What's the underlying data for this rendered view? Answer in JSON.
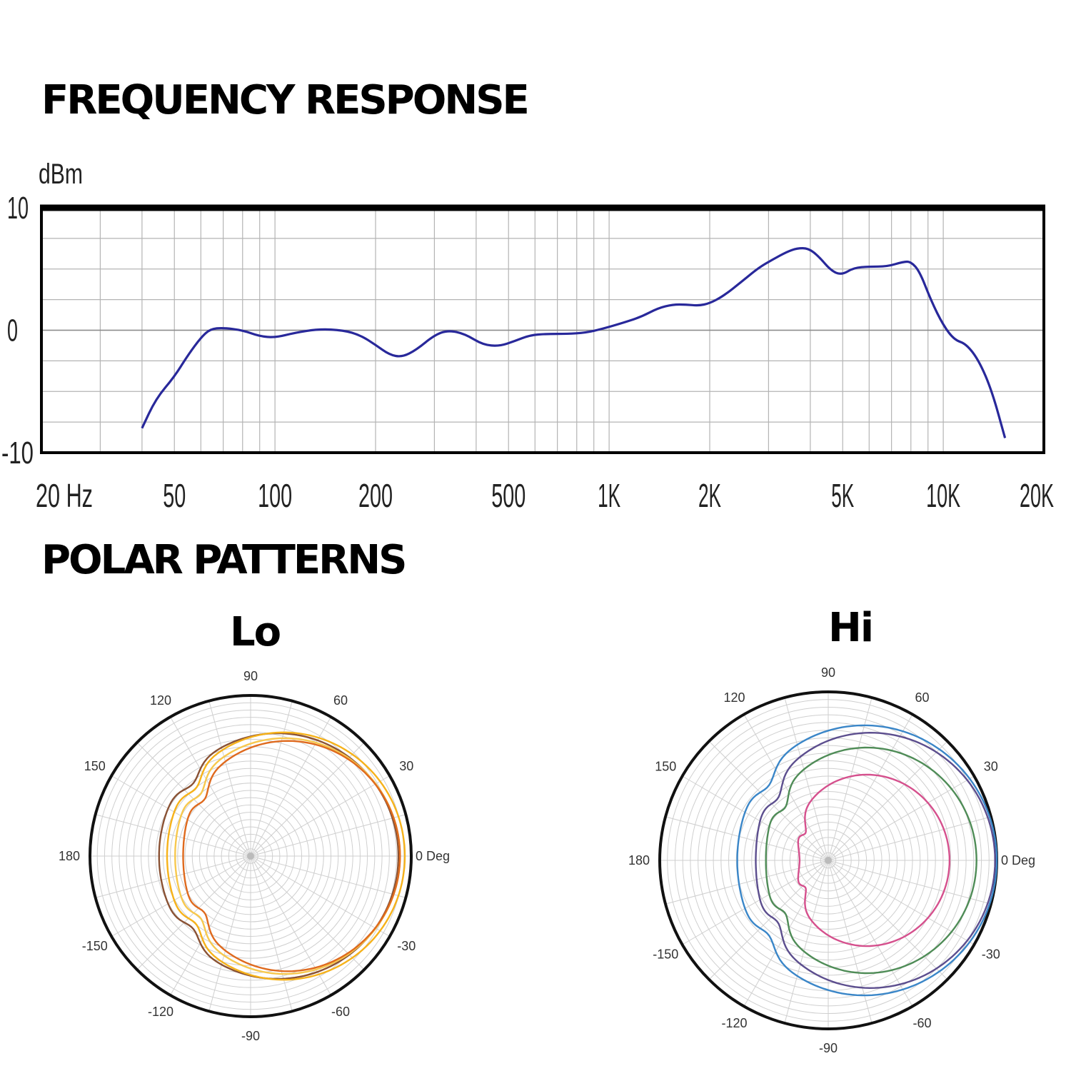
{
  "headings": {
    "frequency_response": "FREQUENCY RESPONSE",
    "polar_patterns": "POLAR PATTERNS"
  },
  "polar_labels": {
    "lo": "Lo",
    "hi": "Hi"
  },
  "chart_data": [
    {
      "type": "line",
      "title": "FREQUENCY RESPONSE",
      "ylabel": "dBm",
      "x_scale": "log",
      "xlim": [
        20,
        20000
      ],
      "ylim": [
        -10,
        10
      ],
      "grid": true,
      "x_tick_labels": [
        {
          "value": 20,
          "label": "20 Hz"
        },
        {
          "value": 50,
          "label": "50"
        },
        {
          "value": 100,
          "label": "100"
        },
        {
          "value": 200,
          "label": "200"
        },
        {
          "value": 500,
          "label": "500"
        },
        {
          "value": 1000,
          "label": "1K"
        },
        {
          "value": 2000,
          "label": "2K"
        },
        {
          "value": 5000,
          "label": "5K"
        },
        {
          "value": 10000,
          "label": "10K"
        },
        {
          "value": 20000,
          "label": "20K"
        }
      ],
      "y_tick_labels": [
        {
          "value": 10,
          "label": "10"
        },
        {
          "value": 0,
          "label": "0"
        },
        {
          "value": -10,
          "label": "-10"
        }
      ],
      "series": [
        {
          "color": "#28289a",
          "points": [
            [
              40,
              -8.0
            ],
            [
              44,
              -5.6
            ],
            [
              50,
              -3.8
            ],
            [
              55,
              -2.0
            ],
            [
              60,
              -0.6
            ],
            [
              64,
              0.1
            ],
            [
              70,
              0.2
            ],
            [
              80,
              0.0
            ],
            [
              90,
              -0.5
            ],
            [
              100,
              -0.6
            ],
            [
              115,
              -0.2
            ],
            [
              135,
              0.1
            ],
            [
              160,
              0.0
            ],
            [
              180,
              -0.4
            ],
            [
              200,
              -1.2
            ],
            [
              220,
              -2.0
            ],
            [
              240,
              -2.2
            ],
            [
              265,
              -1.6
            ],
            [
              300,
              -0.4
            ],
            [
              330,
              0.0
            ],
            [
              370,
              -0.3
            ],
            [
              420,
              -1.2
            ],
            [
              470,
              -1.3
            ],
            [
              520,
              -0.9
            ],
            [
              580,
              -0.4
            ],
            [
              650,
              -0.3
            ],
            [
              750,
              -0.3
            ],
            [
              850,
              -0.2
            ],
            [
              950,
              0.1
            ],
            [
              1100,
              0.6
            ],
            [
              1250,
              1.1
            ],
            [
              1400,
              1.8
            ],
            [
              1550,
              2.1
            ],
            [
              1700,
              2.1
            ],
            [
              1850,
              2.0
            ],
            [
              2000,
              2.2
            ],
            [
              2200,
              2.8
            ],
            [
              2500,
              4.0
            ],
            [
              2800,
              5.1
            ],
            [
              3100,
              5.8
            ],
            [
              3400,
              6.4
            ],
            [
              3650,
              6.7
            ],
            [
              3950,
              6.7
            ],
            [
              4250,
              6.0
            ],
            [
              4600,
              4.9
            ],
            [
              4950,
              4.5
            ],
            [
              5400,
              5.1
            ],
            [
              6000,
              5.2
            ],
            [
              6800,
              5.2
            ],
            [
              7600,
              5.6
            ],
            [
              8000,
              5.6
            ],
            [
              8500,
              4.8
            ],
            [
              9200,
              2.4
            ],
            [
              10000,
              0.4
            ],
            [
              10800,
              -0.8
            ],
            [
              11700,
              -1.1
            ],
            [
              12800,
              -2.5
            ],
            [
              14000,
              -5.0
            ],
            [
              15300,
              -8.8
            ]
          ]
        }
      ]
    },
    {
      "type": "polar",
      "title": "Lo",
      "angle_labels": [
        "90",
        "60",
        "30",
        "0 Deg",
        "-30",
        "-60",
        "-90",
        "-120",
        "-150",
        "180",
        "150",
        "120"
      ],
      "grid": true,
      "series": [
        {
          "color": "#8a5234",
          "front": 0.92,
          "back": 0.57
        },
        {
          "color": "#f6b21a",
          "front": 0.96,
          "back": 0.52
        },
        {
          "color": "#f7c84e",
          "front": 0.93,
          "back": 0.47
        },
        {
          "color": "#df6a1e",
          "front": 0.93,
          "back": 0.42
        }
      ]
    },
    {
      "type": "polar",
      "title": "Hi",
      "angle_labels": [
        "90",
        "60",
        "30",
        "0 Deg",
        "-30",
        "-60",
        "-90",
        "-120",
        "-150",
        "180",
        "150",
        "120"
      ],
      "grid": true,
      "series": [
        {
          "color": "#3a86c8",
          "front": 1.0,
          "back": 0.54
        },
        {
          "color": "#4f8c57",
          "front": 0.88,
          "back": 0.37
        },
        {
          "color": "#5c4e8e",
          "front": 0.99,
          "back": 0.43
        },
        {
          "color": "#d5508d",
          "front": 0.72,
          "back": 0.17
        }
      ]
    }
  ]
}
